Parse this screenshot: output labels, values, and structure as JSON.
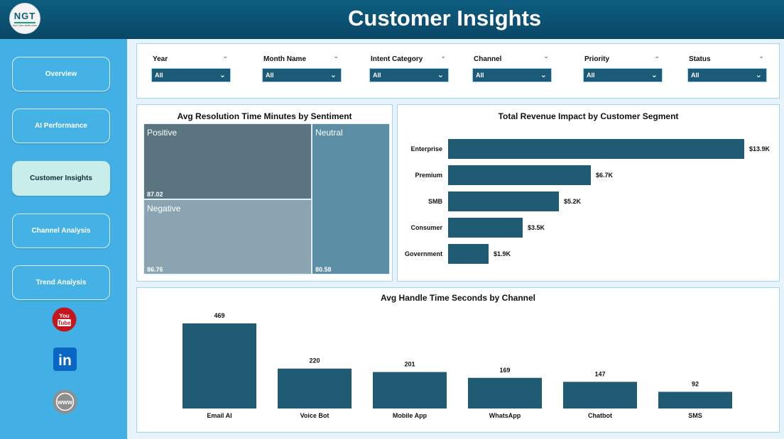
{
  "header": {
    "title": "Customer Insights",
    "logo_text": "NGT",
    "logo_subtext": "NEXT GEN TEMPLATES"
  },
  "sidebar": {
    "items": [
      {
        "label": "Overview",
        "active": false
      },
      {
        "label": "AI Performance",
        "active": false
      },
      {
        "label": "Customer Insights",
        "active": true
      },
      {
        "label": "Channel Analysis",
        "active": false
      },
      {
        "label": "Trend Analysis",
        "active": false
      }
    ],
    "social": [
      {
        "icon": "youtube-icon",
        "label": "You Tube"
      },
      {
        "icon": "linkedin-icon",
        "label": "in"
      },
      {
        "icon": "globe-icon",
        "label": "www"
      }
    ]
  },
  "filters": [
    {
      "label": "Year",
      "value": "All"
    },
    {
      "label": "Month Name",
      "value": "All"
    },
    {
      "label": "Intent Category",
      "value": "All"
    },
    {
      "label": "Channel",
      "value": "All"
    },
    {
      "label": "Priority",
      "value": "All"
    },
    {
      "label": "Status",
      "value": "All"
    }
  ],
  "colors": {
    "header": "#0d5d80",
    "sidebar": "#42b0e4",
    "active_nav": "#c9eee9",
    "bar": "#1f5b73",
    "filter_select": "#1c5b77",
    "treemap_positive": "#5b7580",
    "treemap_negative": "#8aa5b1",
    "treemap_neutral": "#5b8ea4"
  },
  "treemap": {
    "title": "Avg Resolution Time Minutes by Sentiment",
    "cells": [
      {
        "name": "Positive",
        "value": "87.02"
      },
      {
        "name": "Negative",
        "value": "86.76"
      },
      {
        "name": "Neutral",
        "value": "80.58"
      }
    ]
  },
  "chart_data": [
    {
      "type": "bar",
      "orientation": "horizontal",
      "title": "Total Revenue Impact by Customer Segment",
      "categories": [
        "Enterprise",
        "Premium",
        "SMB",
        "Consumer",
        "Government"
      ],
      "values": [
        13.9,
        6.7,
        5.2,
        3.5,
        1.9
      ],
      "labels": [
        "$13.9K",
        "$6.7K",
        "$5.2K",
        "$3.5K",
        "$1.9K"
      ],
      "unit": "K",
      "xlim": [
        0,
        14
      ]
    },
    {
      "type": "bar",
      "orientation": "vertical",
      "title": "Avg Handle Time Seconds by Channel",
      "categories": [
        "Email AI",
        "Voice Bot",
        "Mobile App",
        "WhatsApp",
        "Chatbot",
        "SMS"
      ],
      "values": [
        469,
        220,
        201,
        169,
        147,
        92
      ],
      "ylim": [
        0,
        469
      ]
    }
  ]
}
